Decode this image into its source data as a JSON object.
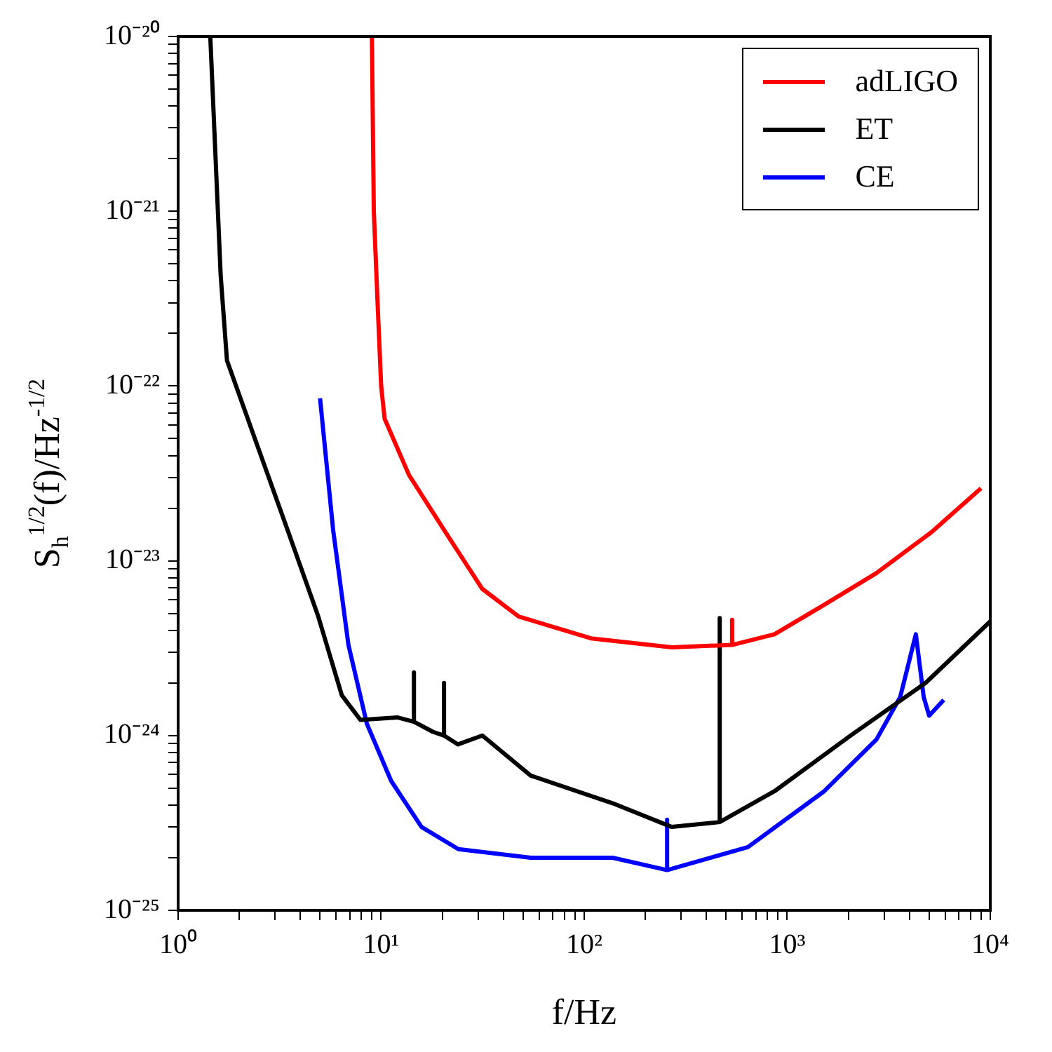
{
  "chart_data": {
    "type": "line",
    "xlabel": "f/Hz",
    "ylabel": "S$_{h}$$^{1/2}$(f)/Hz$^{-1/2}$",
    "log": "xy",
    "legend": "top right",
    "marker": "none",
    "line_style": "solid",
    "grid": false,
    "xlim": [
      1,
      10000
    ],
    "xticks": [
      {
        "value": 1,
        "label": "10⁰"
      },
      {
        "value": 2,
        "label": null
      },
      {
        "value": 3,
        "label": null
      },
      {
        "value": 4,
        "label": null
      },
      {
        "value": 5,
        "label": null
      },
      {
        "value": 6,
        "label": null
      },
      {
        "value": 7,
        "label": null
      },
      {
        "value": 8,
        "label": null
      },
      {
        "value": 9,
        "label": null
      },
      {
        "value": 10,
        "label": "10¹"
      },
      {
        "value": 20,
        "label": null
      },
      {
        "value": 30,
        "label": null
      },
      {
        "value": 40,
        "label": null
      },
      {
        "value": 50,
        "label": null
      },
      {
        "value": 60,
        "label": null
      },
      {
        "value": 70,
        "label": null
      },
      {
        "value": 80,
        "label": null
      },
      {
        "value": 90,
        "label": null
      },
      {
        "value": 100,
        "label": "10²"
      },
      {
        "value": 200,
        "label": null
      },
      {
        "value": 300,
        "label": null
      },
      {
        "value": 400,
        "label": null
      },
      {
        "value": 500,
        "label": null
      },
      {
        "value": 600,
        "label": null
      },
      {
        "value": 700,
        "label": null
      },
      {
        "value": 800,
        "label": null
      },
      {
        "value": 900,
        "label": null
      },
      {
        "value": 1000,
        "label": "10³"
      },
      {
        "value": 2000,
        "label": null
      },
      {
        "value": 3000,
        "label": null
      },
      {
        "value": 4000,
        "label": null
      },
      {
        "value": 5000,
        "label": null
      },
      {
        "value": 6000,
        "label": null
      },
      {
        "value": 7000,
        "label": null
      },
      {
        "value": 8000,
        "label": null
      },
      {
        "value": 9000,
        "label": null
      },
      {
        "value": 10000,
        "label": "10⁴"
      }
    ],
    "ylim": [
      1e-25,
      1e-20
    ],
    "yticks": [
      {
        "value": 1e-25,
        "label": "10⁻²⁵"
      },
      {
        "value": 2e-25,
        "label": null
      },
      {
        "value": 3e-25,
        "label": null
      },
      {
        "value": 4e-25,
        "label": null
      },
      {
        "value": 5e-25,
        "label": null
      },
      {
        "value": 6e-25,
        "label": null
      },
      {
        "value": 7e-25,
        "label": null
      },
      {
        "value": 8e-25,
        "label": null
      },
      {
        "value": 9e-25,
        "label": null
      },
      {
        "value": 1e-24,
        "label": "10⁻²⁴"
      },
      {
        "value": 2e-24,
        "label": null
      },
      {
        "value": 3e-24,
        "label": null
      },
      {
        "value": 4e-24,
        "label": null
      },
      {
        "value": 5e-24,
        "label": null
      },
      {
        "value": 6e-24,
        "label": null
      },
      {
        "value": 7e-24,
        "label": null
      },
      {
        "value": 8e-24,
        "label": null
      },
      {
        "value": 9e-24,
        "label": null
      },
      {
        "value": 1e-23,
        "label": "10⁻²³"
      },
      {
        "value": 2e-23,
        "label": null
      },
      {
        "value": 3e-23,
        "label": null
      },
      {
        "value": 4e-23,
        "label": null
      },
      {
        "value": 5e-23,
        "label": null
      },
      {
        "value": 6e-23,
        "label": null
      },
      {
        "value": 7e-23,
        "label": null
      },
      {
        "value": 8e-23,
        "label": null
      },
      {
        "value": 9e-23,
        "label": null
      },
      {
        "value": 1e-22,
        "label": "10⁻²²"
      },
      {
        "value": 2e-22,
        "label": null
      },
      {
        "value": 3e-22,
        "label": null
      },
      {
        "value": 4e-22,
        "label": null
      },
      {
        "value": 5e-22,
        "label": null
      },
      {
        "value": 6e-22,
        "label": null
      },
      {
        "value": 7e-22,
        "label": null
      },
      {
        "value": 8e-22,
        "label": null
      },
      {
        "value": 9e-22,
        "label": null
      },
      {
        "value": 1e-21,
        "label": "10⁻²¹"
      },
      {
        "value": 2e-21,
        "label": null
      },
      {
        "value": 3e-21,
        "label": null
      },
      {
        "value": 4e-21,
        "label": null
      },
      {
        "value": 5e-21,
        "label": null
      },
      {
        "value": 6e-21,
        "label": null
      },
      {
        "value": 7e-21,
        "label": null
      },
      {
        "value": 8e-21,
        "label": null
      },
      {
        "value": 9e-21,
        "label": null
      },
      {
        "value": 1e-20,
        "label": "10⁻²⁰"
      }
    ],
    "series": [
      {
        "name": "adLIGO",
        "color": "#ff0000",
        "x": [
          9,
          9.2,
          9.6,
          10,
          10.4,
          13.7,
          20.8,
          31.5,
          47.6,
          108,
          270,
          535,
          535,
          535,
          865,
          1520,
          2750,
          5100,
          9000
        ],
        "values": [
          1e-20,
          1e-21,
          3e-22,
          1e-22,
          6.5e-23,
          3.1e-23,
          1.45e-23,
          6.9e-24,
          4.8e-24,
          3.6e-24,
          3.2e-24,
          3.3e-24,
          4.6e-24,
          3.3e-24,
          3.8e-24,
          5.6e-24,
          8.5e-24,
          1.45e-23,
          2.6e-23
        ]
      },
      {
        "name": "ET",
        "color": "#000000",
        "x": [
          1.44,
          1.62,
          1.74,
          2.45,
          3.46,
          4.9,
          6.4,
          7.9,
          12,
          14.5,
          14.5,
          14.5,
          18,
          20.4,
          20.4,
          20.4,
          23.9,
          31.5,
          54.5,
          138,
          270,
          465,
          465,
          465,
          865,
          2050,
          4800,
          10000
        ],
        "values": [
          1e-20,
          4.3e-22,
          1.4e-22,
          4.6e-23,
          1.5e-23,
          4.8e-24,
          1.7e-24,
          1.23e-24,
          1.27e-24,
          1.2e-24,
          2.3e-24,
          1.2e-24,
          1.05e-24,
          1e-24,
          2e-24,
          1e-24,
          8.9e-25,
          1e-24,
          5.9e-25,
          4.1e-25,
          3e-25,
          3.2e-25,
          4.7e-24,
          3.2e-25,
          4.8e-25,
          1e-24,
          2e-24,
          4.5e-24
        ]
      },
      {
        "name": "CE",
        "color": "#0000ff",
        "x": [
          5,
          5.8,
          6.9,
          8.5,
          11.2,
          15.8,
          24,
          54.5,
          138,
          256,
          256,
          256,
          640,
          1520,
          2750,
          3600,
          4300,
          4700,
          5000,
          5900
        ],
        "values": [
          8.5e-23,
          1.5e-23,
          3.3e-24,
          1.17e-24,
          5.5e-25,
          3e-25,
          2.24e-25,
          2e-25,
          2e-25,
          1.7e-25,
          3.3e-25,
          1.7e-25,
          2.3e-25,
          4.8e-25,
          9.5e-25,
          1.66e-24,
          3.8e-24,
          1.66e-24,
          1.3e-24,
          1.6e-24
        ]
      }
    ]
  }
}
